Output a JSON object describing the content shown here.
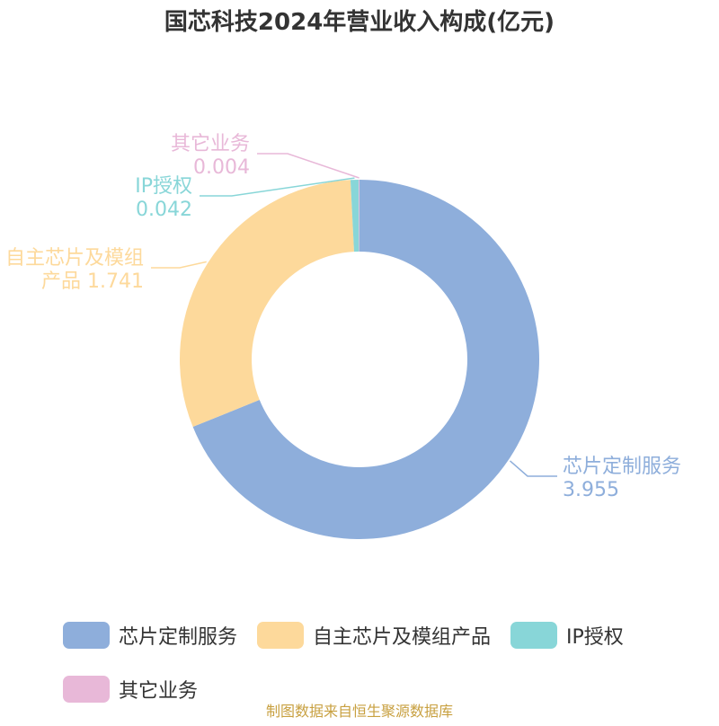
{
  "title": "国芯科技2024年营业收入构成(亿元)",
  "source": "制图数据来自恒生聚源数据库",
  "chart_data": {
    "type": "pie",
    "style": "donut",
    "unit": "亿元",
    "slices": [
      {
        "label": "芯片定制服务",
        "callout": [
          "芯片定制服务",
          "3.955"
        ],
        "value": 3.955,
        "color": "#8eaedb"
      },
      {
        "label": "自主芯片及模组产品",
        "callout": [
          "自主芯片及模组",
          "产品 1.741"
        ],
        "value": 1.741,
        "color": "#fdd99b"
      },
      {
        "label": "IP授权",
        "callout": [
          "IP授权",
          "0.042"
        ],
        "value": 0.042,
        "color": "#88d6d8"
      },
      {
        "label": "其它业务",
        "callout": [
          "其它业务",
          "0.004"
        ],
        "value": 0.004,
        "color": "#e8b8d8"
      }
    ],
    "legend_position": "bottom"
  }
}
